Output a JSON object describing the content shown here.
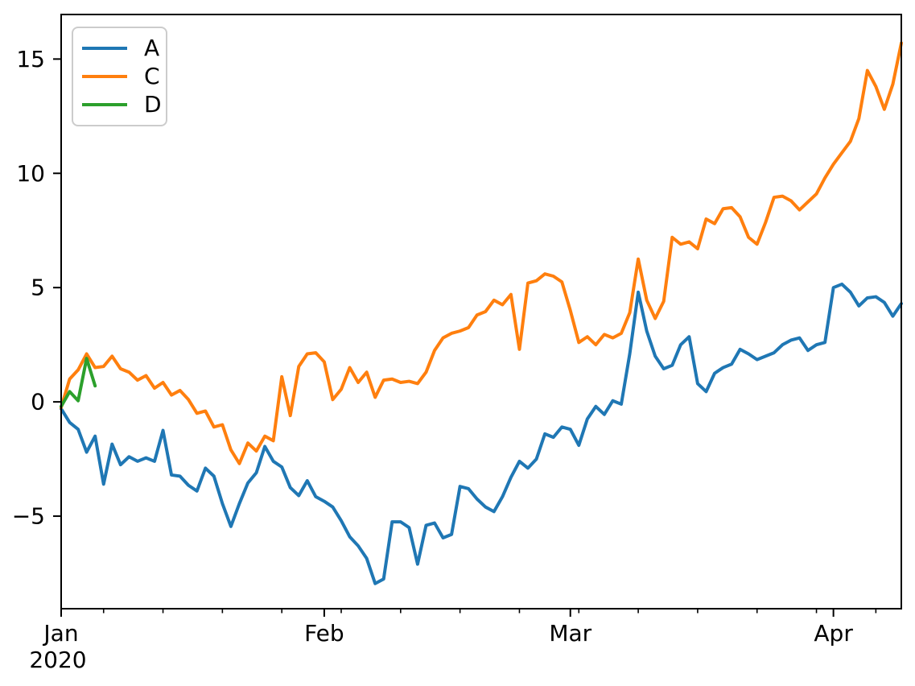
{
  "chart_data": {
    "type": "line",
    "title": "",
    "xlabel": "",
    "ylabel": "",
    "x_start_date": "2020-01-01",
    "x_frequency": "daily",
    "x_range_days": [
      0,
      99
    ],
    "ylim": [
      -9.05,
      16.95
    ],
    "grid": false,
    "legend_position": "upper-left",
    "y_ticks": [
      {
        "value": -5,
        "label": "−5"
      },
      {
        "value": 0,
        "label": "0"
      },
      {
        "value": 5,
        "label": "5"
      },
      {
        "value": 10,
        "label": "10"
      },
      {
        "value": 15,
        "label": "15"
      }
    ],
    "x_major_ticks": [
      {
        "day": 0,
        "label": "Jan",
        "sublabel": "2020"
      },
      {
        "day": 31,
        "label": "Feb",
        "sublabel": ""
      },
      {
        "day": 60,
        "label": "Mar",
        "sublabel": ""
      },
      {
        "day": 91,
        "label": "Apr",
        "sublabel": ""
      }
    ],
    "x_minor_tick_days": [
      5,
      12,
      19,
      26,
      33,
      40,
      47,
      54,
      61,
      68,
      75,
      82,
      89,
      96
    ],
    "series": [
      {
        "name": "A",
        "color": "#1f77b4",
        "start_day": 0,
        "values": [
          -0.3,
          -0.9,
          -1.2,
          -2.2,
          -1.5,
          -3.6,
          -1.85,
          -2.75,
          -2.4,
          -2.6,
          -2.45,
          -2.6,
          -1.25,
          -3.2,
          -3.25,
          -3.65,
          -3.9,
          -2.9,
          -3.25,
          -4.45,
          -5.45,
          -4.45,
          -3.55,
          -3.1,
          -1.95,
          -2.6,
          -2.85,
          -3.75,
          -4.1,
          -3.45,
          -4.15,
          -4.35,
          -4.6,
          -5.2,
          -5.9,
          -6.3,
          -6.85,
          -7.95,
          -7.75,
          -5.25,
          -5.25,
          -5.5,
          -7.1,
          -5.4,
          -5.3,
          -5.95,
          -5.8,
          -3.7,
          -3.8,
          -4.25,
          -4.6,
          -4.8,
          -4.15,
          -3.3,
          -2.6,
          -2.9,
          -2.5,
          -1.4,
          -1.55,
          -1.1,
          -1.2,
          -1.9,
          -0.75,
          -0.2,
          -0.55,
          0.05,
          -0.1,
          2.1,
          4.8,
          3.1,
          2.0,
          1.45,
          1.6,
          2.5,
          2.85,
          0.8,
          0.45,
          1.25,
          1.5,
          1.65,
          2.3,
          2.1,
          1.85,
          2.0,
          2.15,
          2.5,
          2.7,
          2.8,
          2.25,
          2.5,
          2.6,
          5.0,
          5.15,
          4.8,
          4.2,
          4.55,
          4.6,
          4.35,
          3.75,
          4.3
        ]
      },
      {
        "name": "C",
        "color": "#ff7f0e",
        "start_day": 0,
        "values": [
          -0.25,
          1.0,
          1.4,
          2.1,
          1.5,
          1.55,
          2.0,
          1.45,
          1.3,
          0.95,
          1.15,
          0.6,
          0.85,
          0.3,
          0.5,
          0.1,
          -0.5,
          -0.4,
          -1.1,
          -1.0,
          -2.1,
          -2.7,
          -1.8,
          -2.15,
          -1.5,
          -1.7,
          1.1,
          -0.6,
          1.55,
          2.1,
          2.15,
          1.75,
          0.1,
          0.55,
          1.5,
          0.85,
          1.3,
          0.2,
          0.95,
          1.0,
          0.85,
          0.9,
          0.8,
          1.3,
          2.25,
          2.8,
          3.0,
          3.1,
          3.25,
          3.8,
          3.95,
          4.45,
          4.25,
          4.7,
          2.3,
          5.2,
          5.3,
          5.6,
          5.5,
          5.25,
          4.0,
          2.6,
          2.85,
          2.5,
          2.95,
          2.8,
          3.0,
          3.9,
          6.25,
          4.45,
          3.65,
          4.4,
          7.2,
          6.9,
          7.0,
          6.7,
          8.0,
          7.8,
          8.45,
          8.5,
          8.1,
          7.2,
          6.9,
          7.85,
          8.95,
          9.0,
          8.8,
          8.4,
          8.75,
          9.1,
          9.8,
          10.4,
          10.9,
          11.4,
          12.4,
          14.5,
          13.8,
          12.8,
          13.9,
          15.7
        ]
      },
      {
        "name": "D",
        "color": "#2ca02c",
        "start_day": 0,
        "values": [
          -0.2,
          0.45,
          0.05,
          1.9,
          0.7
        ]
      }
    ]
  }
}
